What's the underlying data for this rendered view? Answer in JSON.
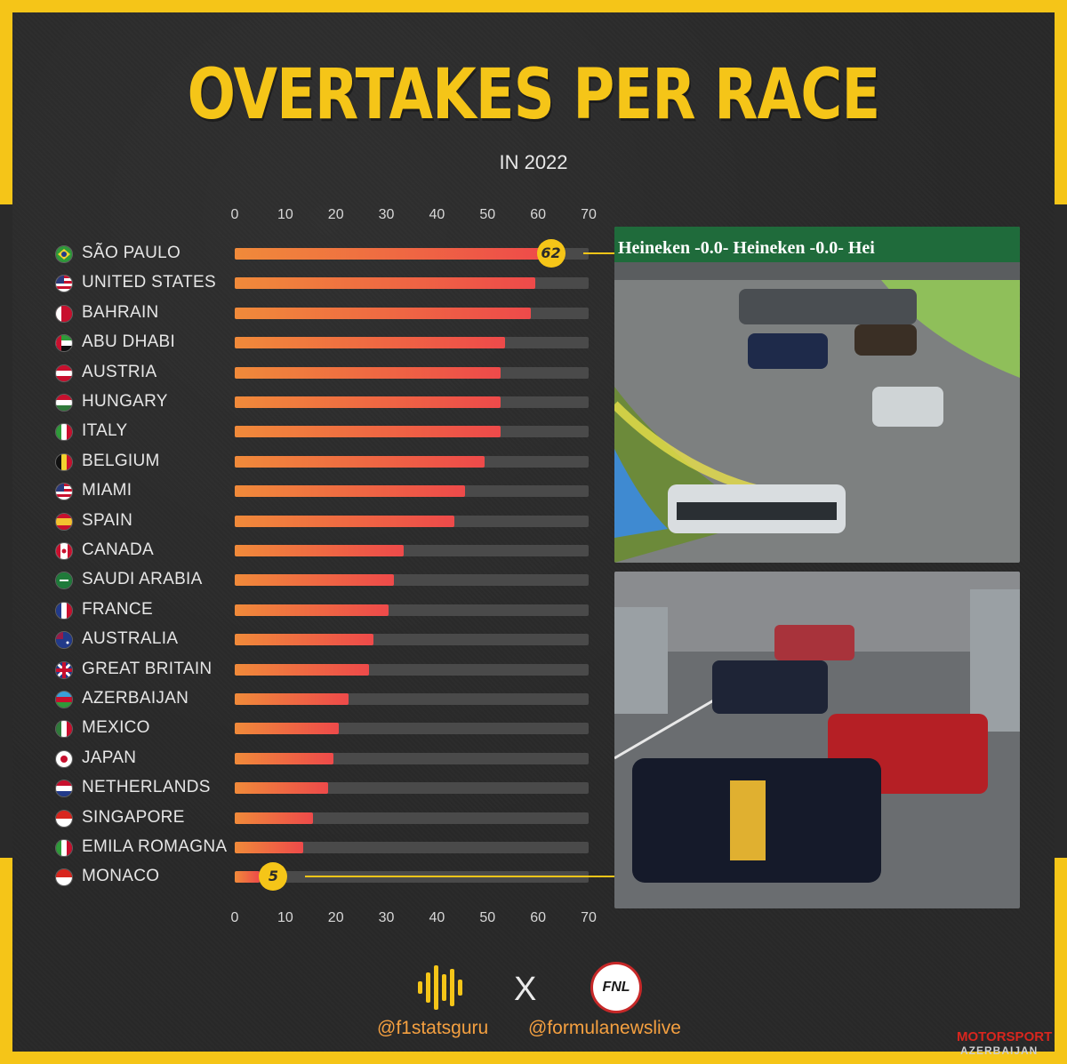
{
  "header": {
    "title": "OVERTAKES PER RACE",
    "subtitle": "IN 2022"
  },
  "chart_data": {
    "type": "bar",
    "orientation": "horizontal",
    "title": "OVERTAKES PER RACE",
    "subtitle": "IN 2022",
    "xlim": [
      0,
      70
    ],
    "xticks": [
      "0",
      "10",
      "20",
      "30",
      "40",
      "50",
      "60",
      "70"
    ],
    "grid": false,
    "categories": [
      "SÃO PAULO",
      "UNITED STATES",
      "BAHRAIN",
      "ABU DHABI",
      "AUSTRIA",
      "HUNGARY",
      "ITALY",
      "BELGIUM",
      "MIAMI",
      "SPAIN",
      "CANADA",
      "SAUDI ARABIA",
      "FRANCE",
      "AUSTRALIA",
      "GREAT BRITAIN",
      "AZERBAIJAN",
      "MEXICO",
      "JAPAN",
      "NETHERLANDS",
      "SINGAPORE",
      "EMILA ROMAGNA",
      "MONACO"
    ],
    "values": [
      62,
      59.5,
      58.5,
      53.5,
      52.5,
      52.5,
      52.5,
      49.5,
      45.5,
      43.5,
      33.5,
      31.5,
      30.5,
      27.5,
      26.5,
      22.5,
      20.5,
      19.5,
      18.5,
      15.5,
      13.5,
      5
    ],
    "data_labels": [
      {
        "category": "SÃO PAULO",
        "label": "62"
      },
      {
        "category": "MONACO",
        "label": "5"
      }
    ],
    "colors": {
      "bar_start": "#f08a3a",
      "bar_end": "#ee4a4a",
      "track": "#4a4a4a",
      "accent": "#f5c518"
    }
  },
  "flags": [
    "brazil",
    "usa",
    "bahrain",
    "uae",
    "austria",
    "hungary",
    "italy",
    "belgium",
    "usa",
    "spain",
    "canada",
    "saudi",
    "france",
    "australia",
    "uk",
    "azerbaijan",
    "mexico",
    "japan",
    "netherlands",
    "singapore",
    "italy",
    "monaco"
  ],
  "footer": {
    "handle_left": "@f1statsguru",
    "separator": "X",
    "logo_right": "FNL",
    "handle_right": "@formulanewslive"
  },
  "watermark": {
    "line1": "MOTORSPORT",
    "line2": "AZERBAIJAN"
  },
  "photos": {
    "top": {
      "banner_text": "Heineken  -0.0-  Heineken  -0.0-  Hei"
    },
    "bottom": {}
  }
}
